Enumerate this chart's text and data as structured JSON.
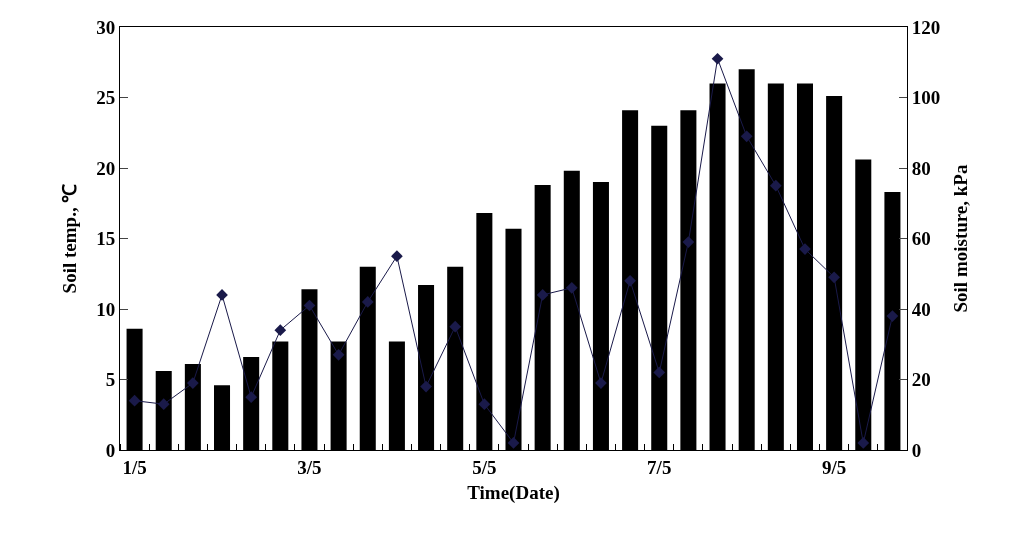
{
  "chart_data": {
    "type": "bar",
    "xlabel": "Time(Date)",
    "ylabel": "Soil temp., ℃",
    "y2label": "Soil moisture, kPa",
    "categories": [
      "1/5",
      null,
      null,
      null,
      null,
      null,
      "3/5",
      null,
      null,
      null,
      null,
      null,
      "5/5",
      null,
      null,
      null,
      null,
      null,
      "7/5",
      null,
      null,
      null,
      null,
      null,
      "9/5",
      null,
      null
    ],
    "series": [
      {
        "color": "#000000",
        "values": [
          8.6,
          5.6,
          6.1,
          4.6,
          6.6,
          7.7,
          11.4,
          7.7,
          13.0,
          7.7,
          11.7,
          13.0,
          16.8,
          15.7,
          18.8,
          19.8,
          19.0,
          24.1,
          23.0,
          24.1,
          26.0,
          27.0,
          26.0,
          26.0,
          25.1,
          20.6,
          18.3
        ]
      },
      {
        "type": "line",
        "axis": "y2",
        "color": "#1a1a4a",
        "marker": "diamond",
        "line_style": "solid",
        "values": [
          14,
          13,
          19,
          44,
          15,
          34,
          41,
          27,
          42,
          55,
          18,
          35,
          13,
          2,
          44,
          46,
          19,
          48,
          22,
          59,
          111,
          89,
          75,
          57,
          49,
          2,
          38
        ]
      }
    ],
    "ylim": [
      0,
      30
    ],
    "yticks": [
      0,
      5,
      10,
      15,
      20,
      25,
      30
    ],
    "y2lim": [
      0,
      120
    ],
    "y2ticks": [
      0,
      20,
      40,
      60,
      80,
      100,
      120
    ],
    "grid": false
  }
}
